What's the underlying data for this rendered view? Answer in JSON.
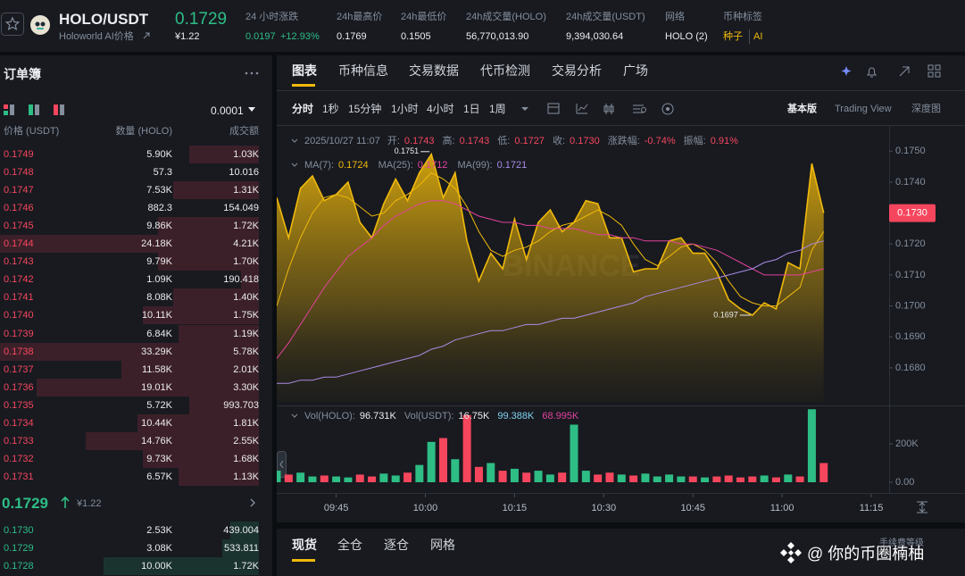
{
  "header": {
    "pair": "HOLO/USDT",
    "name": "Holoworld AI价格",
    "price": "0.1729",
    "price_cny": "¥1.22",
    "stats": [
      {
        "label": "24 小时涨跌",
        "value": "0.0197",
        "extra": "+12.93%"
      },
      {
        "label": "24h最高价",
        "value": "0.1769"
      },
      {
        "label": "24h最低价",
        "value": "0.1505"
      },
      {
        "label": "24h成交量(HOLO)",
        "value": "56,770,013.90"
      },
      {
        "label": "24h成交量(USDT)",
        "value": "9,394,030.64"
      }
    ],
    "network": {
      "label": "网络",
      "value": "HOLO (2)"
    },
    "tags": {
      "label": "币种标签",
      "values": [
        "种子",
        "AI"
      ]
    }
  },
  "order_book": {
    "title": "订单簿",
    "tick_size": "0.0001",
    "columns": [
      "价格 (USDT)",
      "数量 (HOLO)",
      "成交额"
    ],
    "asks": [
      {
        "price": "0.1749",
        "amount": "5.90K",
        "total": "1.03K",
        "depth": 27
      },
      {
        "price": "0.1748",
        "amount": "57.3",
        "total": "10.016",
        "depth": 0
      },
      {
        "price": "0.1747",
        "amount": "7.53K",
        "total": "1.31K",
        "depth": 33
      },
      {
        "price": "0.1746",
        "amount": "882.3",
        "total": "154.049",
        "depth": 0
      },
      {
        "price": "0.1745",
        "amount": "9.86K",
        "total": "1.72K",
        "depth": 39
      },
      {
        "price": "0.1744",
        "amount": "24.18K",
        "total": "4.21K",
        "depth": 100
      },
      {
        "price": "0.1743",
        "amount": "9.79K",
        "total": "1.70K",
        "depth": 39
      },
      {
        "price": "0.1742",
        "amount": "1.09K",
        "total": "190.418",
        "depth": 7
      },
      {
        "price": "0.1741",
        "amount": "8.08K",
        "total": "1.40K",
        "depth": 33
      },
      {
        "price": "0.1740",
        "amount": "10.11K",
        "total": "1.75K",
        "depth": 45
      },
      {
        "price": "0.1739",
        "amount": "6.84K",
        "total": "1.19K",
        "depth": 31
      },
      {
        "price": "0.1738",
        "amount": "33.29K",
        "total": "5.78K",
        "depth": 100
      },
      {
        "price": "0.1737",
        "amount": "11.58K",
        "total": "2.01K",
        "depth": 53
      },
      {
        "price": "0.1736",
        "amount": "19.01K",
        "total": "3.30K",
        "depth": 86
      },
      {
        "price": "0.1735",
        "amount": "5.72K",
        "total": "993.703",
        "depth": 27
      },
      {
        "price": "0.1734",
        "amount": "10.44K",
        "total": "1.81K",
        "depth": 47
      },
      {
        "price": "0.1733",
        "amount": "14.76K",
        "total": "2.55K",
        "depth": 67
      },
      {
        "price": "0.1732",
        "amount": "9.73K",
        "total": "1.68K",
        "depth": 45
      },
      {
        "price": "0.1731",
        "amount": "6.57K",
        "total": "1.13K",
        "depth": 31
      }
    ],
    "last_price": "0.1729",
    "last_price_cny": "¥1.22",
    "bids": [
      {
        "price": "0.1730",
        "amount": "2.53K",
        "total": "439.004",
        "depth": 11
      },
      {
        "price": "0.1729",
        "amount": "3.08K",
        "total": "533.811",
        "depth": 14
      },
      {
        "price": "0.1728",
        "amount": "10.00K",
        "total": "1.72K",
        "depth": 60
      }
    ]
  },
  "chart_panel": {
    "tabs": [
      "图表",
      "币种信息",
      "交易数据",
      "代币检测",
      "交易分析",
      "广场"
    ],
    "intervals": [
      "分时",
      "1秒",
      "15分钟",
      "1小时",
      "4小时",
      "1日",
      "1周"
    ],
    "views": [
      "基本版",
      "Trading View",
      "深度图"
    ],
    "bottom_tabs": [
      "现货",
      "全仓",
      "逐仓",
      "网格"
    ],
    "fee_level": "手续费等级",
    "watermark": "@ 你的币圈楠柚"
  },
  "chart_data": {
    "type": "line",
    "x": [
      "09:35",
      "09:37",
      "09:39",
      "09:41",
      "09:43",
      "09:45",
      "09:47",
      "09:49",
      "09:51",
      "09:53",
      "09:55",
      "09:57",
      "09:59",
      "10:01",
      "10:03",
      "10:05",
      "10:07",
      "10:09",
      "10:11",
      "10:13",
      "10:15",
      "10:17",
      "10:19",
      "10:21",
      "10:23",
      "10:25",
      "10:27",
      "10:29",
      "10:31",
      "10:33",
      "10:35",
      "10:37",
      "10:39",
      "10:41",
      "10:43",
      "10:45",
      "10:47",
      "10:49",
      "10:51",
      "10:53",
      "10:55",
      "10:57",
      "10:59",
      "11:01",
      "11:03",
      "11:05",
      "11:07"
    ],
    "xlim": [
      "09:35",
      "11:18"
    ],
    "xticks": [
      "09:45",
      "10:00",
      "10:15",
      "10:30",
      "10:45",
      "11:00",
      "11:15"
    ],
    "ylim": [
      0.1669,
      0.1757
    ],
    "yticks": [
      {
        "value": 0.175,
        "label": "0.1750"
      },
      {
        "value": 0.174,
        "label": "0.1740"
      },
      {
        "value": 0.173,
        "label": "0.1730"
      },
      {
        "value": 0.172,
        "label": "0.1720"
      },
      {
        "value": 0.171,
        "label": "0.1710"
      },
      {
        "value": 0.17,
        "label": "0.1700"
      },
      {
        "value": 0.169,
        "label": "0.1690"
      },
      {
        "value": 0.168,
        "label": "0.1680"
      }
    ],
    "series": [
      {
        "color": "#f0b90b",
        "area": true,
        "values": [
          0.1735,
          0.1722,
          0.1738,
          0.1742,
          0.1734,
          0.1736,
          0.174,
          0.1727,
          0.1722,
          0.1733,
          0.1741,
          0.1734,
          0.1743,
          0.1749,
          0.1735,
          0.1743,
          0.1721,
          0.1708,
          0.1717,
          0.1712,
          0.1728,
          0.1715,
          0.1727,
          0.1731,
          0.1724,
          0.1727,
          0.1734,
          0.1733,
          0.1722,
          0.1722,
          0.1711,
          0.1712,
          0.1712,
          0.1721,
          0.1722,
          0.1717,
          0.1717,
          0.1711,
          0.1702,
          0.1699,
          0.1697,
          0.1701,
          0.1699,
          0.1714,
          0.1712,
          0.1746,
          0.173
        ]
      },
      {
        "color": "#f0b90b",
        "values": [
          0.17,
          0.1712,
          0.1722,
          0.173,
          0.1735,
          0.1736,
          0.1735,
          0.1732,
          0.1729,
          0.173,
          0.1734,
          0.1736,
          0.1739,
          0.1743,
          0.1741,
          0.1738,
          0.1732,
          0.1724,
          0.1718,
          0.1716,
          0.1718,
          0.1719,
          0.1721,
          0.1724,
          0.1726,
          0.1727,
          0.1729,
          0.1731,
          0.1729,
          0.1726,
          0.172,
          0.1715,
          0.1713,
          0.1716,
          0.1719,
          0.172,
          0.1718,
          0.1714,
          0.1708,
          0.1703,
          0.1701,
          0.17,
          0.17,
          0.1703,
          0.1706,
          0.1718,
          0.1724
        ]
      },
      {
        "color": "#e2429c",
        "values": [
          0.1683,
          0.1688,
          0.1694,
          0.17,
          0.1706,
          0.1711,
          0.1716,
          0.1719,
          0.1722,
          0.1726,
          0.1729,
          0.1731,
          0.1733,
          0.1734,
          0.1734,
          0.1733,
          0.1731,
          0.1729,
          0.1728,
          0.1727,
          0.1727,
          0.1726,
          0.1726,
          0.1725,
          0.1725,
          0.1725,
          0.1724,
          0.1723,
          0.1723,
          0.1722,
          0.1722,
          0.1721,
          0.1721,
          0.1721,
          0.172,
          0.172,
          0.1719,
          0.1718,
          0.1716,
          0.1714,
          0.1712,
          0.171,
          0.171,
          0.171,
          0.171,
          0.1711,
          0.1712
        ]
      },
      {
        "color": "#a98be6",
        "values": [
          0.1675,
          0.1675,
          0.1676,
          0.1676,
          0.1677,
          0.1677,
          0.1678,
          0.1679,
          0.168,
          0.1681,
          0.1682,
          0.1683,
          0.1684,
          0.1686,
          0.1687,
          0.1689,
          0.169,
          0.1691,
          0.1692,
          0.1692,
          0.1693,
          0.1694,
          0.1694,
          0.1695,
          0.1696,
          0.1696,
          0.1697,
          0.1698,
          0.1699,
          0.17,
          0.1701,
          0.1703,
          0.1704,
          0.1705,
          0.1706,
          0.1707,
          0.1708,
          0.1709,
          0.171,
          0.1711,
          0.1712,
          0.1714,
          0.1715,
          0.1717,
          0.1718,
          0.172,
          0.1721
        ]
      }
    ],
    "info_date": "2025/10/27 11:07",
    "ohlc": [
      {
        "label": "开:",
        "value": "0.1743"
      },
      {
        "label": "高:",
        "value": "0.1743"
      },
      {
        "label": "低:",
        "value": "0.1727"
      },
      {
        "label": "收:",
        "value": "0.1730"
      },
      {
        "label": "涨跌幅:",
        "value": "-0.74%"
      },
      {
        "label": "振幅:",
        "value": "0.91%"
      }
    ],
    "ma_legend": [
      {
        "label": "MA(7):",
        "value": "0.1724"
      },
      {
        "label": "MA(25):",
        "value": "0.1712"
      },
      {
        "label": "MA(99):",
        "value": "0.1721"
      }
    ],
    "last_price": {
      "value": 0.173,
      "label": "0.1730"
    },
    "high": {
      "x": "10:01",
      "value": 0.1751
    },
    "low": {
      "x": "10:55",
      "value": 0.1697
    },
    "watermark": "BINANCE",
    "volume": {
      "ylim": [
        0,
        400000
      ],
      "yticks": [
        {
          "value": 200000,
          "label": "200K"
        },
        {
          "value": 0,
          "label": "0.00"
        }
      ],
      "up_color": "#2ebd85",
      "down_color": "#f6465d",
      "values": [
        60000,
        40000,
        50000,
        30000,
        35000,
        30000,
        25000,
        40000,
        30000,
        45000,
        35000,
        50000,
        90000,
        210000,
        230000,
        120000,
        350000,
        80000,
        100000,
        60000,
        70000,
        50000,
        60000,
        40000,
        50000,
        300000,
        60000,
        40000,
        50000,
        40000,
        35000,
        45000,
        30000,
        40000,
        30000,
        30000,
        25000,
        30000,
        35000,
        25000,
        30000,
        35000,
        25000,
        40000,
        30000,
        380000,
        100000
      ],
      "legend": [
        {
          "label": "Vol(HOLO):",
          "value": "96.731K"
        },
        {
          "label": "Vol(USDT):",
          "value": "16.75K"
        },
        {
          "value": "99.388K",
          "color": "#7fd1ee"
        },
        {
          "value": "68.995K",
          "color": "#e2429c"
        }
      ]
    }
  }
}
